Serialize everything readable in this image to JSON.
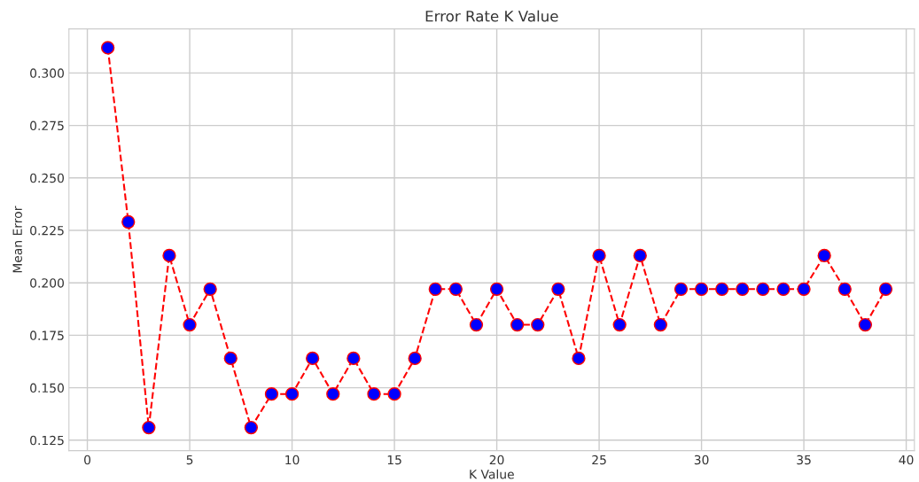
{
  "chart_data": {
    "type": "line",
    "title": "Error Rate K Value",
    "xlabel": "K Value",
    "ylabel": "Mean Error",
    "x": [
      1,
      2,
      3,
      4,
      5,
      6,
      7,
      8,
      9,
      10,
      11,
      12,
      13,
      14,
      15,
      16,
      17,
      18,
      19,
      20,
      21,
      22,
      23,
      24,
      25,
      26,
      27,
      28,
      29,
      30,
      31,
      32,
      33,
      34,
      35,
      36,
      37,
      38,
      39
    ],
    "series": [
      {
        "color": "#ff0000",
        "colors": [
          "#0000ff",
          "#0000ff",
          "#0000ff",
          "#0000ff",
          "#0000ff",
          "#0000ff",
          "#0000ff",
          "#0000ff",
          "#0000ff",
          "#0000ff",
          "#0000ff",
          "#0000ff",
          "#0000ff",
          "#0000ff",
          "#0000ff",
          "#0000ff",
          "#0000ff",
          "#0000ff",
          "#0000ff",
          "#0000ff",
          "#0000ff",
          "#0000ff",
          "#0000ff",
          "#0000ff",
          "#0000ff",
          "#0000ff",
          "#0000ff",
          "#0000ff",
          "#0000ff",
          "#0000ff",
          "#0000ff",
          "#0000ff",
          "#0000ff",
          "#0000ff",
          "#0000ff",
          "#0000ff",
          "#0000ff",
          "#0000ff",
          "#0000ff"
        ],
        "values": [
          0.312,
          0.229,
          0.131,
          0.213,
          0.18,
          0.197,
          0.164,
          0.131,
          0.147,
          0.147,
          0.164,
          0.147,
          0.164,
          0.147,
          0.147,
          0.164,
          0.197,
          0.197,
          0.18,
          0.197,
          0.18,
          0.18,
          0.197,
          0.164,
          0.213,
          0.18,
          0.213,
          0.18,
          0.197,
          0.197,
          0.197,
          0.197,
          0.197,
          0.197,
          0.197,
          0.213,
          0.197,
          0.18,
          0.197
        ]
      }
    ],
    "xlim": [
      -0.9,
      40.4
    ],
    "ylim": [
      0.12,
      0.321
    ],
    "xticks": [
      0,
      5,
      10,
      15,
      20,
      25,
      30,
      35,
      40
    ],
    "yticks": [
      {
        "value": 0.125,
        "label": "0.125"
      },
      {
        "value": 0.15,
        "label": "0.150"
      },
      {
        "value": 0.175,
        "label": "0.175"
      },
      {
        "value": 0.2,
        "label": "0.200"
      },
      {
        "value": 0.225,
        "label": "0.225"
      },
      {
        "value": 0.25,
        "label": "0.250"
      },
      {
        "value": 0.275,
        "label": "0.275"
      },
      {
        "value": 0.3,
        "label": "0.300"
      }
    ],
    "grid": true,
    "marker": "circle",
    "line_style": "dashed"
  }
}
